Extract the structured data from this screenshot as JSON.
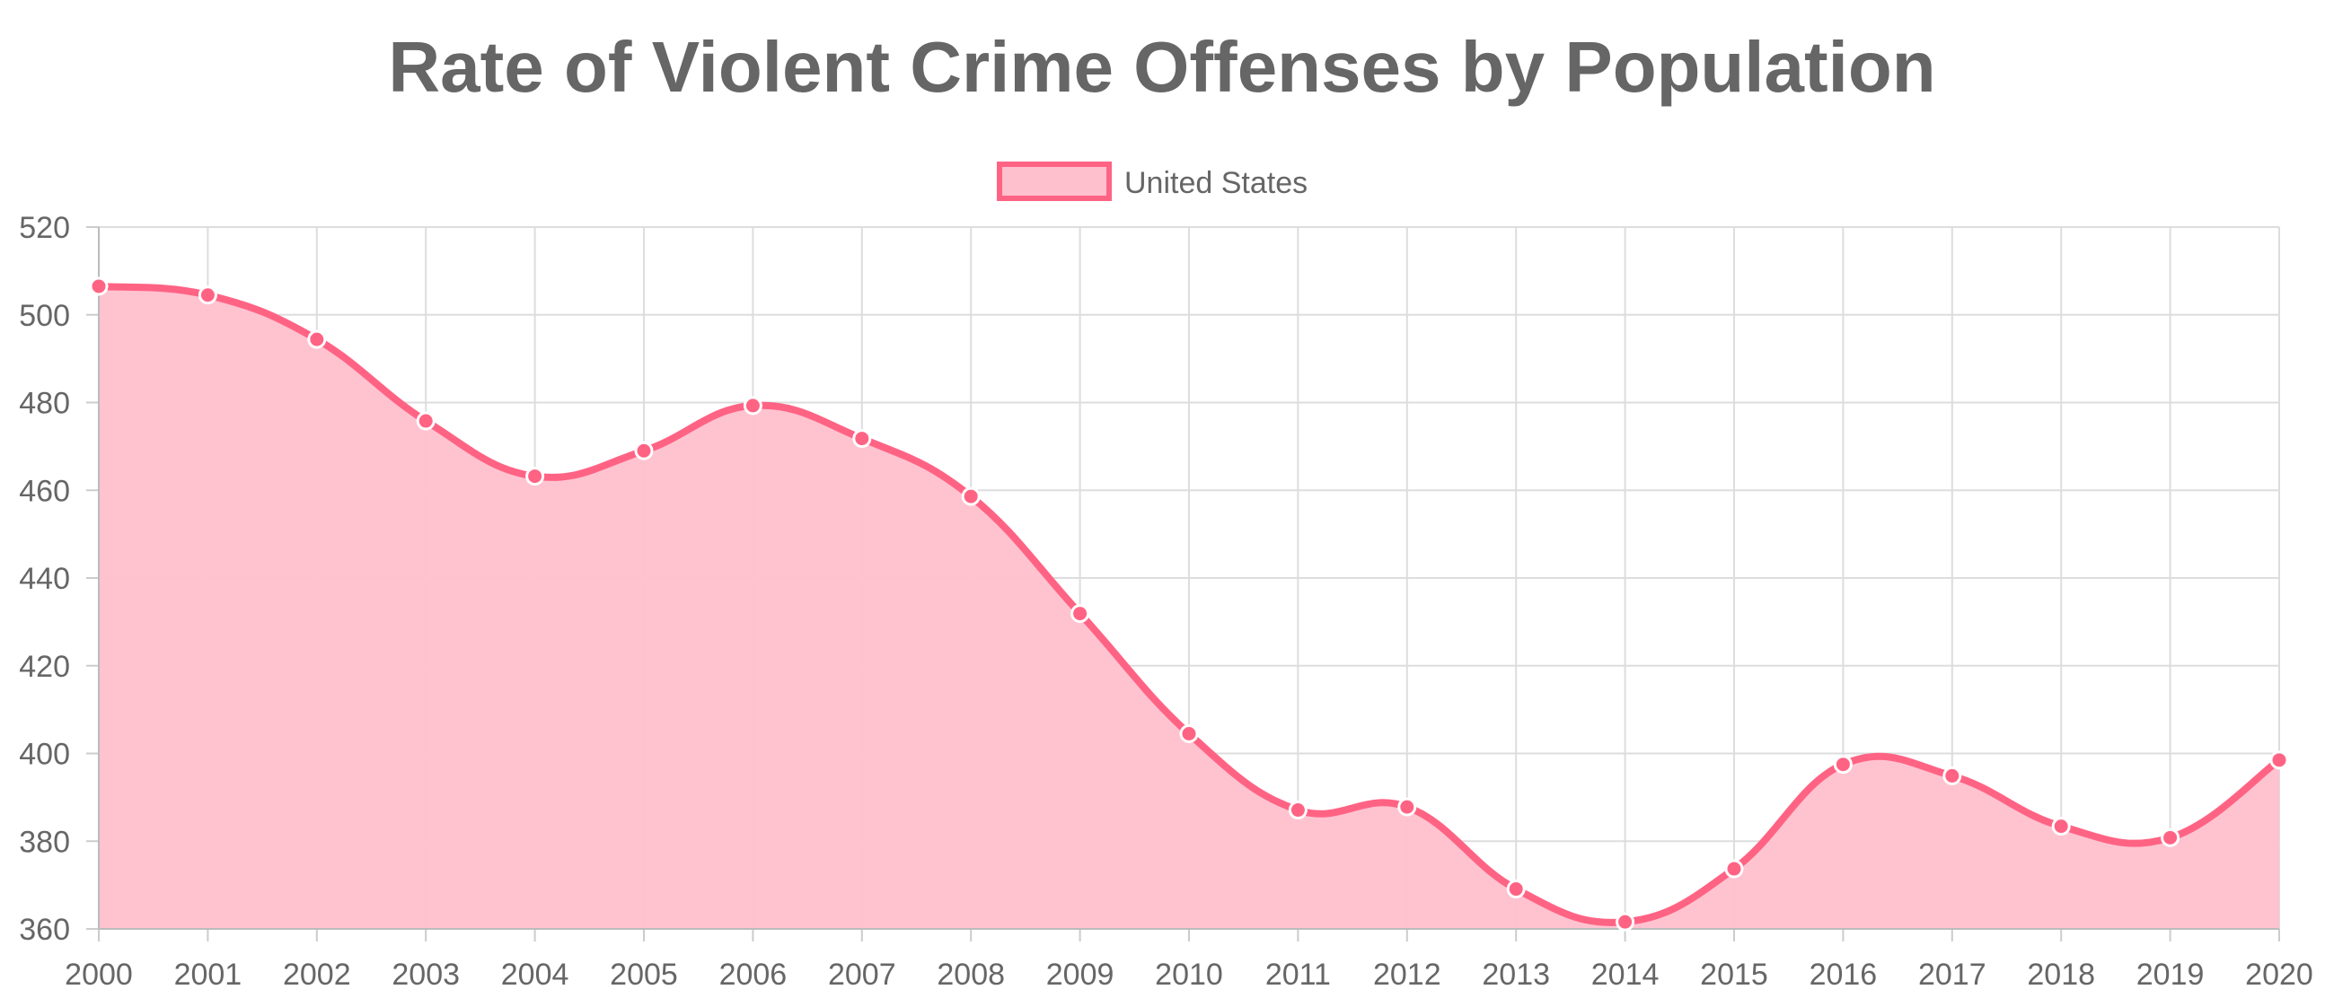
{
  "chart_data": {
    "type": "area",
    "title": "Rate of Violent Crime Offenses by Population",
    "xlabel": "",
    "ylabel": "",
    "categories": [
      "2000",
      "2001",
      "2002",
      "2003",
      "2004",
      "2005",
      "2006",
      "2007",
      "2008",
      "2009",
      "2010",
      "2011",
      "2012",
      "2013",
      "2014",
      "2015",
      "2016",
      "2017",
      "2018",
      "2019",
      "2020"
    ],
    "series": [
      {
        "name": "United States",
        "values": [
          506.5,
          504.5,
          494.4,
          475.8,
          463.2,
          469.0,
          479.3,
          471.8,
          458.6,
          431.9,
          404.5,
          387.1,
          387.8,
          369.1,
          361.6,
          373.7,
          397.5,
          394.9,
          383.4,
          380.8,
          398.5
        ],
        "line_color": "#ff6384",
        "fill_color": "#ffc0cd"
      }
    ],
    "ylim": [
      360,
      520
    ],
    "yticks": [
      "360",
      "380",
      "400",
      "420",
      "440",
      "460",
      "480",
      "500",
      "520"
    ],
    "grid": true,
    "legend_position": "top-center",
    "line_smoothing": true
  }
}
